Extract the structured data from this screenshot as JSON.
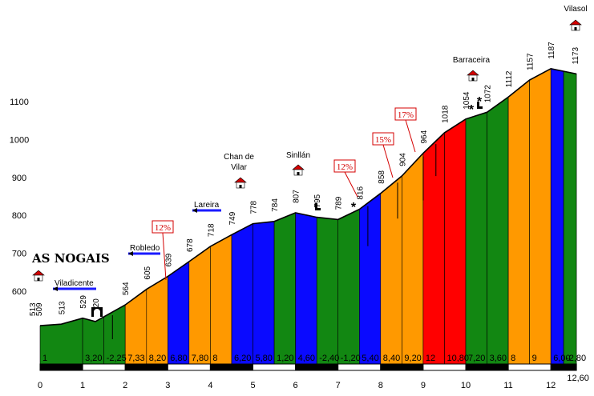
{
  "chart_data": {
    "type": "area",
    "title": "",
    "xlabel": "",
    "ylabel": "",
    "xlim": [
      0,
      12.6
    ],
    "ylim": [
      480,
      1200
    ],
    "y_ticks": [
      "600",
      "700",
      "800",
      "900",
      "1000",
      "1100"
    ],
    "x_ticks": [
      "0",
      "1",
      "2",
      "3",
      "4",
      "5",
      "6",
      "7",
      "8",
      "9",
      "10",
      "11",
      "12"
    ],
    "end_label": "12,60",
    "profile": [
      {
        "x": 0.0,
        "alt": 509
      },
      {
        "x": 0.5,
        "alt": 513
      },
      {
        "x": 1.0,
        "alt": 529
      },
      {
        "x": 1.3,
        "alt": 520
      },
      {
        "x": 2.0,
        "alt": 564
      },
      {
        "x": 2.5,
        "alt": 605
      },
      {
        "x": 3.0,
        "alt": 639
      },
      {
        "x": 3.5,
        "alt": 678
      },
      {
        "x": 4.0,
        "alt": 718
      },
      {
        "x": 4.5,
        "alt": 749
      },
      {
        "x": 5.0,
        "alt": 778
      },
      {
        "x": 5.5,
        "alt": 784
      },
      {
        "x": 6.0,
        "alt": 807
      },
      {
        "x": 6.5,
        "alt": 795
      },
      {
        "x": 7.0,
        "alt": 789
      },
      {
        "x": 7.5,
        "alt": 816
      },
      {
        "x": 8.0,
        "alt": 858
      },
      {
        "x": 8.5,
        "alt": 904
      },
      {
        "x": 9.0,
        "alt": 964
      },
      {
        "x": 9.5,
        "alt": 1018
      },
      {
        "x": 10.0,
        "alt": 1054
      },
      {
        "x": 10.5,
        "alt": 1072
      },
      {
        "x": 11.0,
        "alt": 1112
      },
      {
        "x": 11.5,
        "alt": 1157
      },
      {
        "x": 12.0,
        "alt": 1187
      },
      {
        "x": 12.6,
        "alt": 1173
      }
    ],
    "altitude_labels": [
      {
        "x": 0.0,
        "text": "509"
      },
      {
        "x": 0.0,
        "text": "513",
        "secondary": true
      },
      {
        "x": 0.5,
        "text": "513"
      },
      {
        "x": 1.0,
        "text": "529"
      },
      {
        "x": 1.3,
        "text": "520"
      },
      {
        "x": 2.0,
        "text": "564"
      },
      {
        "x": 2.5,
        "text": "605"
      },
      {
        "x": 3.0,
        "text": "639"
      },
      {
        "x": 3.5,
        "text": "678"
      },
      {
        "x": 4.0,
        "text": "718"
      },
      {
        "x": 4.5,
        "text": "749"
      },
      {
        "x": 5.0,
        "text": "778"
      },
      {
        "x": 5.5,
        "text": "784"
      },
      {
        "x": 6.0,
        "text": "807"
      },
      {
        "x": 6.5,
        "text": "795"
      },
      {
        "x": 7.0,
        "text": "789"
      },
      {
        "x": 7.5,
        "text": "816"
      },
      {
        "x": 8.0,
        "text": "858"
      },
      {
        "x": 8.5,
        "text": "904"
      },
      {
        "x": 9.0,
        "text": "964"
      },
      {
        "x": 9.5,
        "text": "1018"
      },
      {
        "x": 10.0,
        "text": "1054"
      },
      {
        "x": 10.5,
        "text": "1072"
      },
      {
        "x": 11.0,
        "text": "1112"
      },
      {
        "x": 11.5,
        "text": "1157"
      },
      {
        "x": 12.0,
        "text": "1187"
      },
      {
        "x": 12.6,
        "text": "1173"
      }
    ],
    "segments": [
      {
        "x0": 0.0,
        "x1": 1.0,
        "grade": "1",
        "color": "#128712"
      },
      {
        "x0": 1.0,
        "x1": 1.5,
        "grade": "3,20",
        "color": "#128712"
      },
      {
        "x0": 1.5,
        "x1": 2.0,
        "grade": "-2,25",
        "color": "#128712"
      },
      {
        "x0": 2.0,
        "x1": 2.5,
        "grade": "7,33",
        "color": "#ff9900"
      },
      {
        "x0": 2.5,
        "x1": 3.0,
        "grade": "8,20",
        "color": "#ff9900"
      },
      {
        "x0": 3.0,
        "x1": 3.5,
        "grade": "6,80",
        "color": "#0a0aff"
      },
      {
        "x0": 3.5,
        "x1": 4.0,
        "grade": "7,80",
        "color": "#ff9900"
      },
      {
        "x0": 4.0,
        "x1": 4.5,
        "grade": "8",
        "color": "#ff9900"
      },
      {
        "x0": 4.5,
        "x1": 5.0,
        "grade": "6,20",
        "color": "#0a0aff"
      },
      {
        "x0": 5.0,
        "x1": 5.5,
        "grade": "5,80",
        "color": "#0a0aff"
      },
      {
        "x0": 5.5,
        "x1": 6.0,
        "grade": "1,20",
        "color": "#128712"
      },
      {
        "x0": 6.0,
        "x1": 6.5,
        "grade": "4,60",
        "color": "#0a0aff"
      },
      {
        "x0": 6.5,
        "x1": 7.0,
        "grade": "-2,40",
        "color": "#128712"
      },
      {
        "x0": 7.0,
        "x1": 7.5,
        "grade": "-1,20",
        "color": "#128712"
      },
      {
        "x0": 7.5,
        "x1": 8.0,
        "grade": "5,40",
        "color": "#0a0aff"
      },
      {
        "x0": 8.0,
        "x1": 8.5,
        "grade": "8,40",
        "color": "#ff9900"
      },
      {
        "x0": 8.5,
        "x1": 9.0,
        "grade": "9,20",
        "color": "#ff9900"
      },
      {
        "x0": 9.0,
        "x1": 9.5,
        "grade": "12",
        "color": "#ff0000"
      },
      {
        "x0": 9.5,
        "x1": 10.0,
        "grade": "10,80",
        "color": "#ff0000"
      },
      {
        "x0": 10.0,
        "x1": 10.5,
        "grade": "7,20",
        "color": "#128712"
      },
      {
        "x0": 10.5,
        "x1": 11.0,
        "grade": "3,60",
        "color": "#128712"
      },
      {
        "x0": 11.0,
        "x1": 11.5,
        "grade": "8",
        "color": "#ff9900"
      },
      {
        "x0": 11.5,
        "x1": 12.0,
        "grade": "9",
        "color": "#ff9900"
      },
      {
        "x0": 12.0,
        "x1": 12.3,
        "grade": "6,00",
        "color": "#0a0aff"
      },
      {
        "x0": 12.3,
        "x1": 12.6,
        "grade": "-2,80",
        "color": "#128712"
      }
    ],
    "places": [
      {
        "name": "AS NOGAIS",
        "style": "start"
      },
      {
        "name": "Viladicente",
        "style": "arrow"
      },
      {
        "name": "Robledo",
        "style": "arrow"
      },
      {
        "name": "Lareira",
        "style": "arrow"
      },
      {
        "name": "Chan de Vilar",
        "style": "village"
      },
      {
        "name": "Sinllán",
        "style": "village"
      },
      {
        "name": "Barraceira",
        "style": "village"
      },
      {
        "name": "Vilasol",
        "style": "village"
      }
    ],
    "ramp_labels": [
      "12%",
      "12%",
      "15%",
      "17%"
    ],
    "colors": {
      "easy": "#128712",
      "medium": "#0a0aff",
      "hard": "#ff9900",
      "steep": "#ff0000",
      "box": "#d40000"
    }
  }
}
